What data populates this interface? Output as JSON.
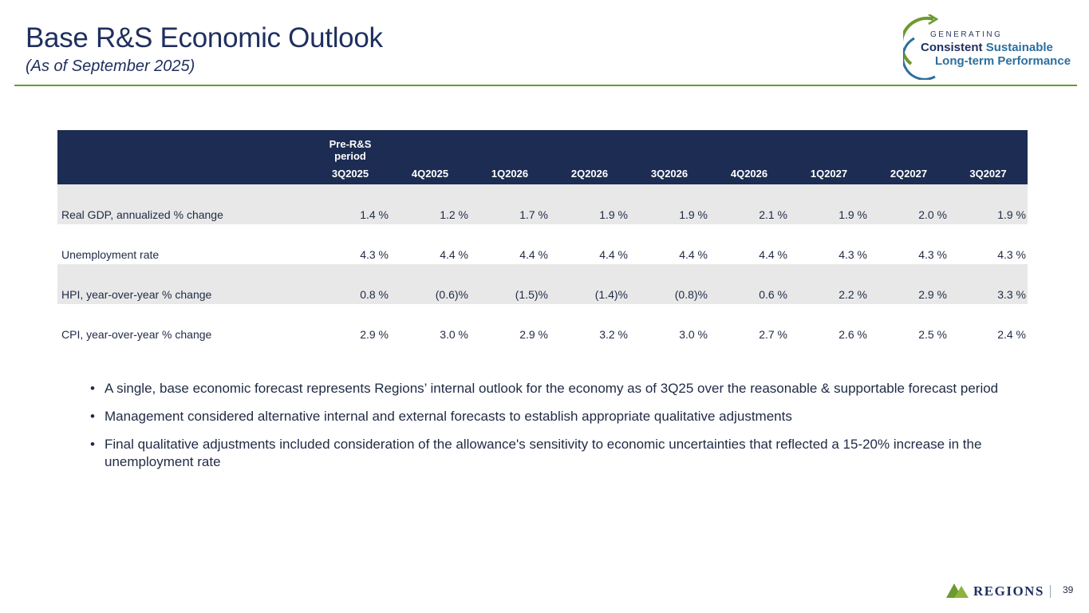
{
  "title": "Base R&S Economic Outlook",
  "subtitle": "(As of September 2025)",
  "brand": {
    "small": "GENERATING",
    "word1": "Consistent",
    "word2": "Sustainable",
    "line2": "Long-term Performance"
  },
  "table": {
    "group_header": "Pre-R&S\nperiod",
    "columns": [
      "3Q2025",
      "4Q2025",
      "1Q2026",
      "2Q2026",
      "3Q2026",
      "4Q2026",
      "1Q2027",
      "2Q2027",
      "3Q2027"
    ],
    "rows": [
      {
        "label": "Real GDP, annualized % change",
        "values": [
          "1.4 %",
          "1.2 %",
          "1.7 %",
          "1.9 %",
          "1.9 %",
          "2.1 %",
          "1.9 %",
          "2.0 %",
          "1.9 %"
        ]
      },
      {
        "label": "Unemployment rate",
        "values": [
          "4.3 %",
          "4.4 %",
          "4.4 %",
          "4.4 %",
          "4.4 %",
          "4.4 %",
          "4.3 %",
          "4.3 %",
          "4.3 %"
        ]
      },
      {
        "label": "HPI, year-over-year % change",
        "values": [
          "0.8 %",
          "(0.6)%",
          "(1.5)%",
          "(1.4)%",
          "(0.8)%",
          "0.6 %",
          "2.2 %",
          "2.9 %",
          "3.3 %"
        ]
      },
      {
        "label": "CPI, year-over-year % change",
        "values": [
          "2.9 %",
          "3.0 %",
          "2.9 %",
          "3.2 %",
          "3.0 %",
          "2.7 %",
          "2.6 %",
          "2.5 %",
          "2.4 %"
        ]
      }
    ]
  },
  "bullets": [
    "A single, base economic forecast represents Regions’ internal outlook for the economy as of 3Q25 over the reasonable & supportable forecast period",
    "Management considered alternative internal and external forecasts to establish appropriate qualitative adjustments",
    "Final qualitative adjustments included consideration of the allowance's sensitivity to economic uncertainties that reflected a 15-20% increase in the unemployment rate"
  ],
  "footer": {
    "logo_text": "REGIONS",
    "page_number": "39"
  },
  "colors": {
    "title": "#1f2f5e",
    "rule": "#6b9a2f",
    "header_bg": "#1c2c52",
    "row_shade": "#e8e8e8",
    "brand_green": "#6b9a2f",
    "brand_blue": "#2c6f9e"
  }
}
